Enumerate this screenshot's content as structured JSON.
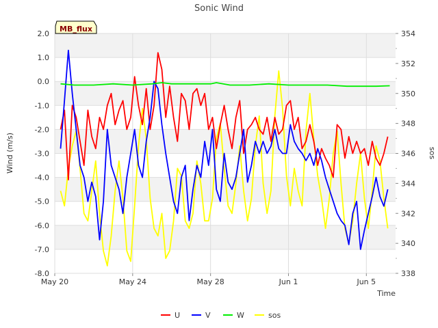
{
  "chart_data": {
    "type": "line",
    "title": "Sonic Wind",
    "badge": "MB_flux",
    "xlabel": "Time",
    "ylabel": "Wind (m/s)",
    "y2label": "sos",
    "xlim": [
      0,
      17.5
    ],
    "ylim": [
      -8.0,
      2.0
    ],
    "y2lim": [
      338,
      354
    ],
    "x_ticks": [
      {
        "value": 0,
        "label": "May 20"
      },
      {
        "value": 4,
        "label": "May 24"
      },
      {
        "value": 8,
        "label": "May 28"
      },
      {
        "value": 12,
        "label": "Jun 1"
      },
      {
        "value": 16,
        "label": "Jun 5"
      }
    ],
    "y_ticks": [
      {
        "value": 2.0,
        "label": "2.0"
      },
      {
        "value": 1.0,
        "label": "1.0"
      },
      {
        "value": 0.0,
        "label": "0.0"
      },
      {
        "value": -1.0,
        "label": "-1.0"
      },
      {
        "value": -2.0,
        "label": "-2.0"
      },
      {
        "value": -3.0,
        "label": "-3.0"
      },
      {
        "value": -4.0,
        "label": "-4.0"
      },
      {
        "value": -5.0,
        "label": "-5.0"
      },
      {
        "value": -6.0,
        "label": "-6.0"
      },
      {
        "value": -7.0,
        "label": "-7.0"
      },
      {
        "value": -8.0,
        "label": "-8.0"
      }
    ],
    "y2_ticks": [
      {
        "value": 354,
        "label": "354"
      },
      {
        "value": 352,
        "label": "352"
      },
      {
        "value": 350,
        "label": "350"
      },
      {
        "value": 348,
        "label": "348"
      },
      {
        "value": 346,
        "label": "346"
      },
      {
        "value": 344,
        "label": "344"
      },
      {
        "value": 342,
        "label": "342"
      },
      {
        "value": 340,
        "label": "340"
      },
      {
        "value": 338,
        "label": "338"
      }
    ],
    "series": [
      {
        "name": "U",
        "color": "#ff0000",
        "axis": "left",
        "x": [
          0.3,
          0.5,
          0.7,
          0.9,
          1.1,
          1.3,
          1.5,
          1.7,
          1.9,
          2.1,
          2.3,
          2.5,
          2.7,
          2.9,
          3.1,
          3.3,
          3.5,
          3.7,
          3.9,
          4.1,
          4.3,
          4.5,
          4.7,
          4.9,
          5.1,
          5.3,
          5.5,
          5.7,
          5.9,
          6.1,
          6.3,
          6.5,
          6.7,
          6.9,
          7.1,
          7.3,
          7.5,
          7.7,
          7.9,
          8.1,
          8.3,
          8.5,
          8.7,
          8.9,
          9.1,
          9.3,
          9.5,
          9.7,
          9.9,
          10.1,
          10.3,
          10.5,
          10.7,
          10.9,
          11.1,
          11.3,
          11.5,
          11.7,
          11.9,
          12.1,
          12.3,
          12.5,
          12.7,
          12.9,
          13.1,
          13.3,
          13.5,
          13.7,
          13.9,
          14.1,
          14.3,
          14.5,
          14.7,
          14.9,
          15.1,
          15.3,
          15.5,
          15.7,
          15.9,
          16.1,
          16.3,
          16.5,
          16.7,
          16.9,
          17.1
        ],
        "values": [
          -2.0,
          -1.2,
          -4.1,
          -1.0,
          -1.5,
          -2.5,
          -3.5,
          -1.2,
          -2.3,
          -2.8,
          -1.5,
          -2.0,
          -1.0,
          -0.5,
          -1.8,
          -1.2,
          -0.8,
          -2.0,
          -1.5,
          0.2,
          -1.0,
          -1.8,
          -0.3,
          -2.0,
          -1.0,
          1.2,
          0.5,
          -1.5,
          -0.2,
          -1.5,
          -2.5,
          -0.5,
          -0.8,
          -2.0,
          -0.5,
          -0.3,
          -1.0,
          -0.5,
          -2.0,
          -1.5,
          -2.8,
          -1.8,
          -1.0,
          -2.0,
          -2.8,
          -1.5,
          -0.8,
          -3.0,
          -2.0,
          -1.8,
          -1.5,
          -2.0,
          -2.2,
          -1.5,
          -2.5,
          -1.5,
          -2.2,
          -2.0,
          -1.0,
          -0.8,
          -2.0,
          -1.5,
          -2.8,
          -2.5,
          -1.8,
          -2.5,
          -3.5,
          -2.8,
          -3.2,
          -3.5,
          -4.0,
          -1.8,
          -2.0,
          -3.2,
          -2.3,
          -3.0,
          -2.5,
          -3.0,
          -2.8,
          -3.5,
          -2.5,
          -3.2,
          -3.5,
          -3.0,
          -2.3
        ]
      },
      {
        "name": "V",
        "color": "#0000ff",
        "axis": "left",
        "x": [
          0.3,
          0.5,
          0.7,
          0.9,
          1.1,
          1.3,
          1.5,
          1.7,
          1.9,
          2.1,
          2.3,
          2.5,
          2.7,
          2.9,
          3.1,
          3.3,
          3.5,
          3.7,
          3.9,
          4.1,
          4.3,
          4.5,
          4.7,
          4.9,
          5.1,
          5.3,
          5.5,
          5.7,
          5.9,
          6.1,
          6.3,
          6.5,
          6.7,
          6.9,
          7.1,
          7.3,
          7.5,
          7.7,
          7.9,
          8.1,
          8.3,
          8.5,
          8.7,
          8.9,
          9.1,
          9.3,
          9.5,
          9.7,
          9.9,
          10.1,
          10.3,
          10.5,
          10.7,
          10.9,
          11.1,
          11.3,
          11.5,
          11.7,
          11.9,
          12.1,
          12.3,
          12.5,
          12.7,
          12.9,
          13.1,
          13.3,
          13.5,
          13.7,
          13.9,
          14.1,
          14.3,
          14.5,
          14.7,
          14.9,
          15.1,
          15.3,
          15.5,
          15.7,
          15.9,
          16.1,
          16.3,
          16.5,
          16.7,
          16.9,
          17.1
        ],
        "values": [
          -2.8,
          -0.8,
          1.3,
          -0.5,
          -2.0,
          -3.5,
          -4.0,
          -5.0,
          -4.2,
          -4.8,
          -6.6,
          -5.0,
          -2.0,
          -3.5,
          -4.0,
          -4.5,
          -5.5,
          -4.0,
          -3.0,
          -2.0,
          -3.5,
          -4.0,
          -2.5,
          -1.5,
          0.0,
          -0.3,
          -1.8,
          -3.0,
          -4.0,
          -5.0,
          -5.5,
          -4.0,
          -3.5,
          -5.8,
          -4.5,
          -3.5,
          -4.0,
          -2.5,
          -3.5,
          -2.0,
          -4.5,
          -5.0,
          -3.0,
          -4.2,
          -4.5,
          -4.0,
          -3.0,
          -2.0,
          -4.2,
          -3.5,
          -2.5,
          -3.0,
          -2.5,
          -3.0,
          -2.7,
          -2.0,
          -2.8,
          -3.0,
          -3.0,
          -1.8,
          -2.5,
          -2.8,
          -3.0,
          -3.3,
          -3.0,
          -3.5,
          -2.8,
          -3.3,
          -4.0,
          -4.5,
          -5.0,
          -5.5,
          -5.8,
          -6.0,
          -6.8,
          -5.5,
          -5.0,
          -7.0,
          -6.2,
          -5.5,
          -4.8,
          -4.0,
          -4.8,
          -5.2,
          -4.5
        ]
      },
      {
        "name": "W",
        "color": "#00ee00",
        "axis": "left",
        "x": [
          0.3,
          1.0,
          2.0,
          3.0,
          4.0,
          5.0,
          5.5,
          6.0,
          7.0,
          8.0,
          8.3,
          9.0,
          10.0,
          11.0,
          12.0,
          13.0,
          14.0,
          15.0,
          16.0,
          16.5,
          17.2
        ],
        "values": [
          -0.1,
          -0.15,
          -0.15,
          -0.1,
          -0.15,
          -0.1,
          -0.05,
          -0.1,
          -0.1,
          -0.1,
          -0.05,
          -0.15,
          -0.15,
          -0.1,
          -0.15,
          -0.15,
          -0.15,
          -0.2,
          -0.2,
          -0.2,
          -0.18
        ]
      },
      {
        "name": "sos",
        "color": "#ffff00",
        "axis": "right",
        "x": [
          0.3,
          0.5,
          0.7,
          0.9,
          1.1,
          1.3,
          1.5,
          1.7,
          1.9,
          2.1,
          2.3,
          2.5,
          2.7,
          2.9,
          3.1,
          3.3,
          3.5,
          3.7,
          3.9,
          4.1,
          4.3,
          4.5,
          4.7,
          4.9,
          5.1,
          5.3,
          5.5,
          5.7,
          5.9,
          6.1,
          6.3,
          6.5,
          6.7,
          6.9,
          7.1,
          7.3,
          7.5,
          7.7,
          7.9,
          8.1,
          8.3,
          8.5,
          8.7,
          8.9,
          9.1,
          9.3,
          9.5,
          9.7,
          9.9,
          10.1,
          10.3,
          10.5,
          10.7,
          10.9,
          11.1,
          11.3,
          11.5,
          11.7,
          11.9,
          12.1,
          12.3,
          12.5,
          12.7,
          12.9,
          13.1,
          13.3,
          13.5,
          13.7,
          13.9,
          14.1,
          14.3,
          14.5,
          14.7,
          14.9,
          15.1,
          15.3,
          15.5,
          15.7,
          15.9,
          16.1,
          16.3,
          16.5,
          16.7,
          16.9,
          17.1
        ],
        "values": [
          343.5,
          342.5,
          345,
          346.5,
          347.5,
          345,
          342,
          341.5,
          343.5,
          345.5,
          342,
          339.5,
          338.5,
          340.5,
          343.5,
          345.5,
          343,
          339.5,
          338.8,
          342.5,
          346.5,
          349,
          347,
          343,
          341,
          340.5,
          342,
          339,
          339.5,
          341.5,
          345,
          344.5,
          341.5,
          341,
          342,
          345.5,
          344,
          341.5,
          341.5,
          343,
          347,
          348,
          345,
          342.5,
          342,
          344,
          346.5,
          343.5,
          341.5,
          343,
          346.5,
          348.5,
          344,
          342,
          343.5,
          348.5,
          351.5,
          349,
          344.5,
          342.5,
          345,
          343.5,
          342.5,
          347.5,
          350,
          347,
          344.5,
          343,
          341,
          343,
          346,
          347.5,
          344,
          341,
          340,
          341.5,
          344,
          346,
          343,
          341,
          343.5,
          346.5,
          345.5,
          343,
          341
        ]
      }
    ]
  }
}
